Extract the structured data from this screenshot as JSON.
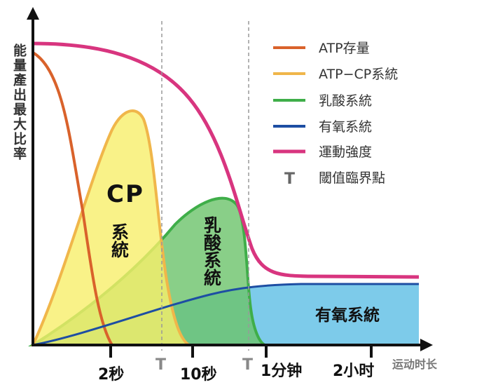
{
  "y_axis_label": "能量產出最大比率",
  "x_axis_label": "运动时长",
  "x_ticks": [
    "2秒",
    "10秒",
    "1分钟",
    "2小时"
  ],
  "threshold_marks": [
    "T",
    "T"
  ],
  "legend": [
    {
      "label": "ATP存量",
      "color": "#d9622b"
    },
    {
      "label": "ATP−CP系統",
      "color": "#f0b64a"
    },
    {
      "label": "乳酸系統",
      "color": "#3fae49"
    },
    {
      "label": "有氧系統",
      "color": "#1d4ea3"
    },
    {
      "label": "運動強度",
      "color": "#d8357f"
    },
    {
      "label": "閾值臨界點",
      "symbol": "T"
    }
  ],
  "area_labels": {
    "cp_top": "CP",
    "cp_bottom": "系統",
    "lactic": "乳酸系統",
    "aerobic": "有氧系統"
  }
}
